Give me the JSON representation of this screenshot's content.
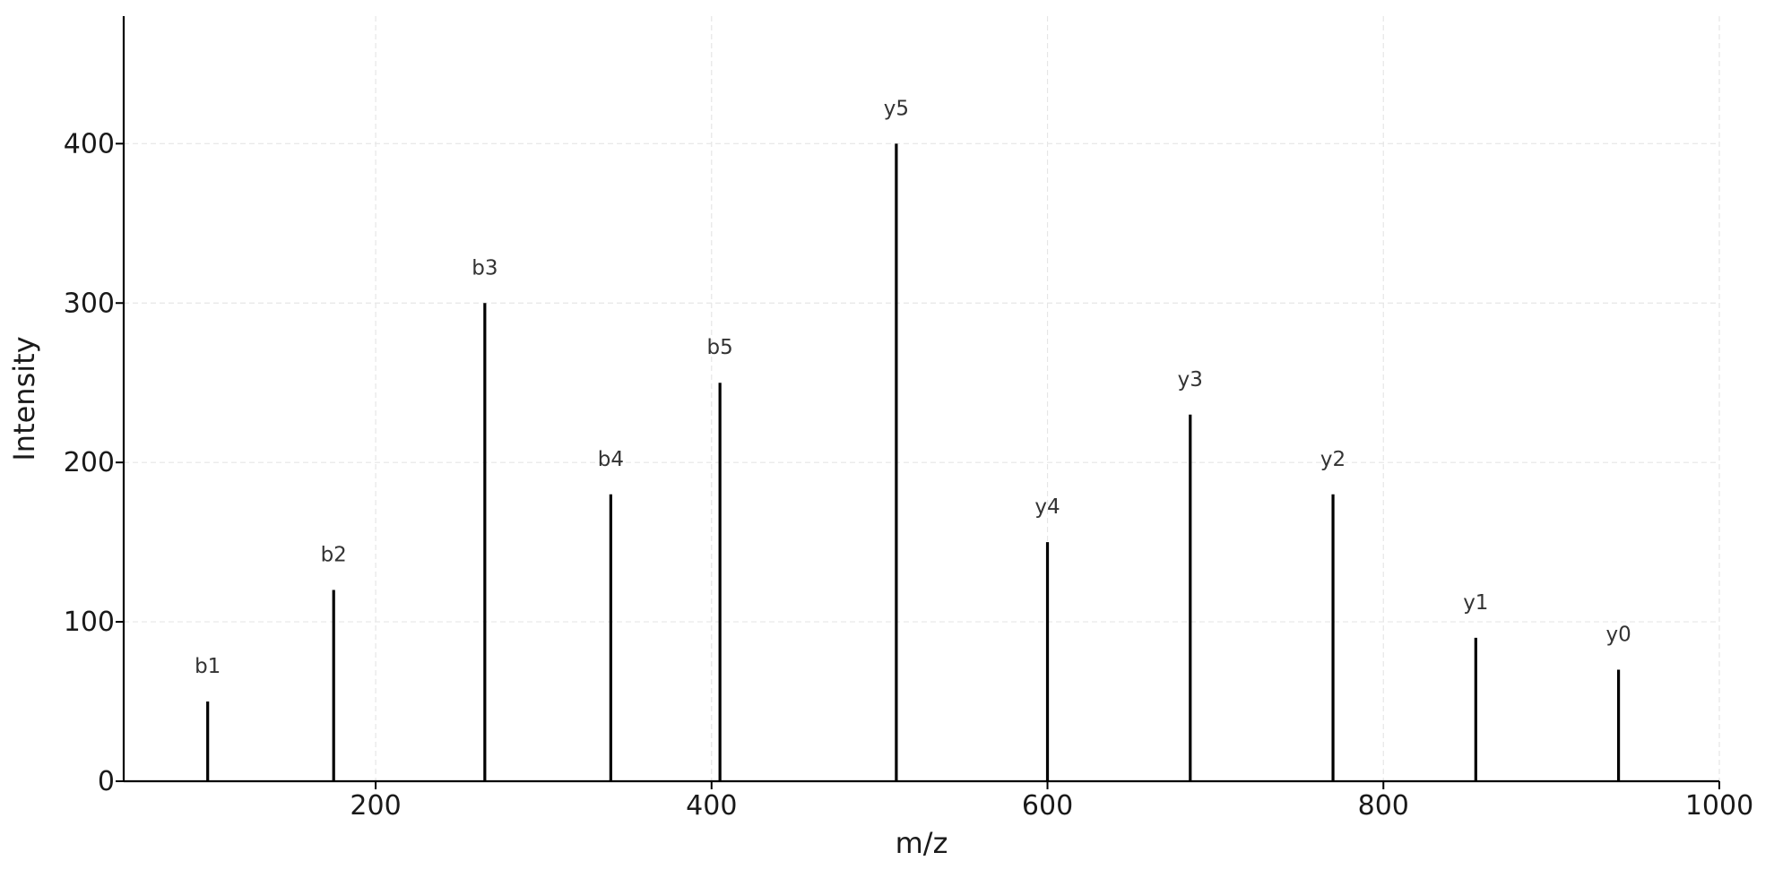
{
  "chart_data": {
    "type": "bar",
    "title": "",
    "xlabel": "m/z",
    "ylabel": "Intensity",
    "xlim": [
      50,
      1000
    ],
    "ylim": [
      0,
      480
    ],
    "xticks": [
      200,
      400,
      600,
      800,
      1000
    ],
    "yticks": [
      0,
      100,
      200,
      300,
      400
    ],
    "grid": true,
    "legend": "none",
    "series": [
      {
        "peaks": [
          {
            "label": "b1",
            "x": 100,
            "y": 50
          },
          {
            "label": "b2",
            "x": 175,
            "y": 120
          },
          {
            "label": "b3",
            "x": 265,
            "y": 300
          },
          {
            "label": "b4",
            "x": 340,
            "y": 180
          },
          {
            "label": "b5",
            "x": 405,
            "y": 250
          },
          {
            "label": "y5",
            "x": 510,
            "y": 400
          },
          {
            "label": "y4",
            "x": 600,
            "y": 150
          },
          {
            "label": "y3",
            "x": 685,
            "y": 230
          },
          {
            "label": "y2",
            "x": 770,
            "y": 180
          },
          {
            "label": "y1",
            "x": 855,
            "y": 90
          },
          {
            "label": "y0",
            "x": 940,
            "y": 70
          }
        ]
      }
    ],
    "colors": {
      "peak": "#000000",
      "grid": "#e6e6e6",
      "text": "#1a1a1a",
      "peak_label": "#333333"
    }
  }
}
